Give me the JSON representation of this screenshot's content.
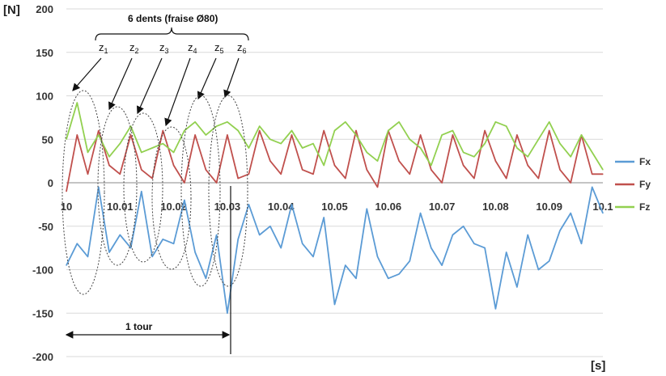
{
  "chart_data": {
    "type": "line",
    "ylabel": "[N]",
    "xlabel": "[s]",
    "ylim": [
      -200,
      200
    ],
    "yticks": [
      200,
      150,
      100,
      50,
      0,
      -50,
      -100,
      -150,
      -200
    ],
    "xlim": [
      10,
      10.1
    ],
    "xticks": [
      "10",
      "10.01",
      "10.02",
      "10.03",
      "10.04",
      "10.05",
      "10.06",
      "10.07",
      "10.08",
      "10.09",
      "10.1"
    ],
    "grid": "horizontal",
    "legend_position": "right",
    "series": [
      {
        "name": "Fx",
        "color": "#5b9bd5",
        "x": [
          10.0,
          10.002,
          10.004,
          10.006,
          10.008,
          10.01,
          10.012,
          10.014,
          10.016,
          10.018,
          10.02,
          10.022,
          10.024,
          10.026,
          10.028,
          10.03,
          10.032,
          10.034,
          10.036,
          10.038,
          10.04,
          10.042,
          10.044,
          10.046,
          10.048,
          10.05,
          10.052,
          10.054,
          10.056,
          10.058,
          10.06,
          10.062,
          10.064,
          10.066,
          10.068,
          10.07,
          10.072,
          10.074,
          10.076,
          10.078,
          10.08,
          10.082,
          10.084,
          10.086,
          10.088,
          10.09,
          10.092,
          10.094,
          10.096,
          10.098,
          10.1
        ],
        "y": [
          -95,
          -70,
          -85,
          -5,
          -80,
          -60,
          -75,
          -10,
          -85,
          -65,
          -70,
          -20,
          -80,
          -110,
          -60,
          -150,
          -65,
          -25,
          -60,
          -50,
          -75,
          -25,
          -70,
          -85,
          -40,
          -140,
          -95,
          -110,
          -30,
          -85,
          -110,
          -105,
          -90,
          -35,
          -75,
          -95,
          -60,
          -50,
          -70,
          -75,
          -145,
          -80,
          -120,
          -60,
          -100,
          -90,
          -55,
          -35,
          -70,
          -5,
          -35
        ]
      },
      {
        "name": "Fy",
        "color": "#c0504d",
        "x": [
          10.0,
          10.002,
          10.004,
          10.006,
          10.008,
          10.01,
          10.012,
          10.014,
          10.016,
          10.018,
          10.02,
          10.022,
          10.024,
          10.026,
          10.028,
          10.03,
          10.032,
          10.034,
          10.036,
          10.038,
          10.04,
          10.042,
          10.044,
          10.046,
          10.048,
          10.05,
          10.052,
          10.054,
          10.056,
          10.058,
          10.06,
          10.062,
          10.064,
          10.066,
          10.068,
          10.07,
          10.072,
          10.074,
          10.076,
          10.078,
          10.08,
          10.082,
          10.084,
          10.086,
          10.088,
          10.09,
          10.092,
          10.094,
          10.096,
          10.098,
          10.1
        ],
        "y": [
          -10,
          55,
          10,
          60,
          20,
          10,
          55,
          15,
          5,
          60,
          20,
          0,
          55,
          15,
          0,
          55,
          5,
          10,
          60,
          25,
          10,
          55,
          15,
          10,
          60,
          20,
          5,
          60,
          15,
          -5,
          60,
          25,
          10,
          55,
          15,
          0,
          55,
          20,
          5,
          60,
          25,
          5,
          55,
          20,
          5,
          60,
          15,
          0,
          55,
          10,
          10
        ]
      },
      {
        "name": "Fz",
        "color": "#92d050",
        "x": [
          10.0,
          10.002,
          10.004,
          10.006,
          10.008,
          10.01,
          10.012,
          10.014,
          10.016,
          10.018,
          10.02,
          10.022,
          10.024,
          10.026,
          10.028,
          10.03,
          10.032,
          10.034,
          10.036,
          10.038,
          10.04,
          10.042,
          10.044,
          10.046,
          10.048,
          10.05,
          10.052,
          10.054,
          10.056,
          10.058,
          10.06,
          10.062,
          10.064,
          10.066,
          10.068,
          10.07,
          10.072,
          10.074,
          10.076,
          10.078,
          10.08,
          10.082,
          10.084,
          10.086,
          10.088,
          10.09,
          10.092,
          10.094,
          10.096,
          10.098,
          10.1
        ],
        "y": [
          50,
          92,
          35,
          55,
          30,
          45,
          65,
          35,
          40,
          45,
          35,
          60,
          70,
          55,
          65,
          70,
          60,
          40,
          65,
          50,
          45,
          60,
          40,
          45,
          20,
          60,
          70,
          55,
          35,
          25,
          60,
          70,
          50,
          40,
          20,
          55,
          60,
          35,
          30,
          45,
          70,
          65,
          40,
          30,
          50,
          70,
          45,
          30,
          55,
          35,
          15
        ]
      }
    ]
  },
  "annotations": {
    "teeth_title": "6 dents (fraise Ø80)",
    "teeth": [
      "z",
      "z",
      "z",
      "z",
      "z",
      "z"
    ],
    "teeth_sub": [
      "1",
      "2",
      "3",
      "4",
      "5",
      "6"
    ],
    "tour_label": "1 tour"
  }
}
